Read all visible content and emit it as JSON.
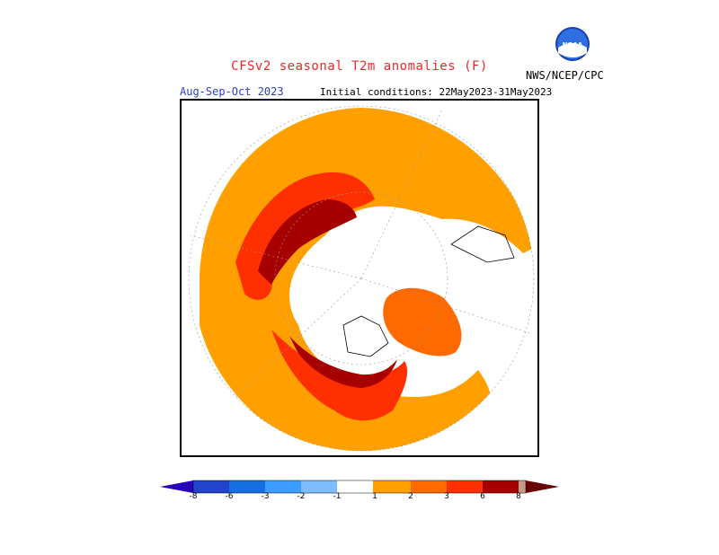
{
  "header": {
    "title": "CFSv2 seasonal T2m anomalies (F)",
    "season": "Aug-Sep-Oct 2023",
    "initial_conditions": "Initial conditions: 22May2023-31May2023",
    "agency": "NWS/NCEP/CPC",
    "logo_text": "NOAA"
  },
  "colors": {
    "title": "#e8282b",
    "season": "#2a3fc9",
    "anom_1": "#ff9f00",
    "anom_2": "#ff6a00",
    "anom_3": "#ff3000",
    "anom_4": "#a60000",
    "anom_5": "#6a0000",
    "cold_1": "#7dbcff",
    "cold_2": "#3b9dff",
    "cold_3": "#166fe0",
    "cold_4": "#2244cc",
    "cold_5": "#2a00bb",
    "extreme_warm": "#c49a8a"
  },
  "legend": {
    "ticks": [
      "-8",
      "-6",
      "-3",
      "-2",
      "-1",
      "1",
      "2",
      "3",
      "6",
      "8"
    ]
  }
}
